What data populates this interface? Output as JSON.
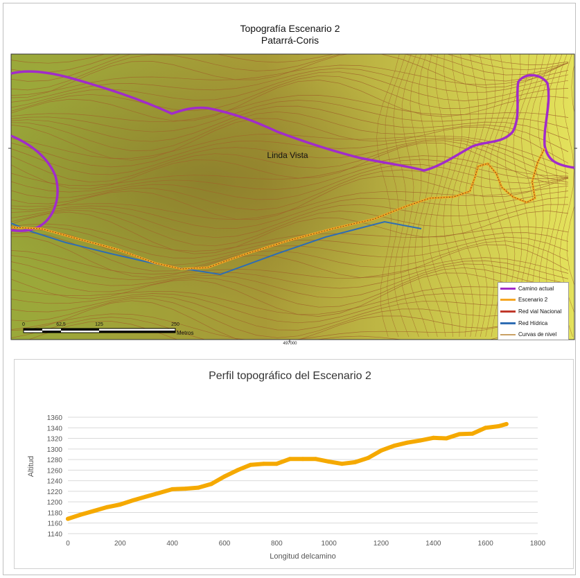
{
  "map": {
    "title_line1": "Topografía Escenario 2",
    "title_line2": "Patarrá-Coris",
    "place_label": "Linda Vista",
    "coordinate_label": "497000",
    "scalebar": {
      "ticks": [
        "0",
        "62,5",
        "125",
        "250"
      ],
      "unit": "Metros"
    },
    "legend": [
      {
        "label": "Camino actual",
        "color": "#a12cc9"
      },
      {
        "label": "Escenario 2",
        "color": "#f5a623"
      },
      {
        "label": "Red vial Nacional",
        "color": "#c0392b"
      },
      {
        "label": "Red Hídrica",
        "color": "#2f6db3"
      },
      {
        "label": "Curvas de nivel",
        "color": "#c9a063"
      }
    ],
    "colors": {
      "terrain_dark": "#8f7d2c",
      "terrain_mid": "#a9b53c",
      "terrain_light": "#e2e05a",
      "contour": "#a0642a"
    }
  },
  "chart_data": {
    "type": "line",
    "title": "Perfil topográfico del Escenario 2",
    "xlabel": "Longitud delcamino",
    "ylabel": "Altitud",
    "xlim": [
      0,
      1800
    ],
    "ylim": [
      1140,
      1360
    ],
    "xticks": [
      0,
      200,
      400,
      600,
      800,
      1000,
      1200,
      1400,
      1600,
      1800
    ],
    "yticks": [
      1140,
      1160,
      1180,
      1200,
      1220,
      1240,
      1260,
      1280,
      1300,
      1320,
      1340,
      1360
    ],
    "color": "#f5a900",
    "x": [
      0,
      50,
      100,
      150,
      200,
      250,
      300,
      350,
      400,
      450,
      500,
      550,
      600,
      650,
      700,
      750,
      800,
      850,
      900,
      950,
      1000,
      1050,
      1100,
      1150,
      1200,
      1250,
      1300,
      1350,
      1400,
      1450,
      1500,
      1550,
      1600,
      1650,
      1680
    ],
    "y": [
      1168,
      1176,
      1183,
      1190,
      1195,
      1203,
      1210,
      1217,
      1224,
      1225,
      1227,
      1234,
      1248,
      1260,
      1270,
      1272,
      1272,
      1281,
      1281,
      1281,
      1276,
      1272,
      1275,
      1283,
      1297,
      1306,
      1312,
      1316,
      1321,
      1320,
      1328,
      1329,
      1340,
      1343,
      1347
    ]
  }
}
